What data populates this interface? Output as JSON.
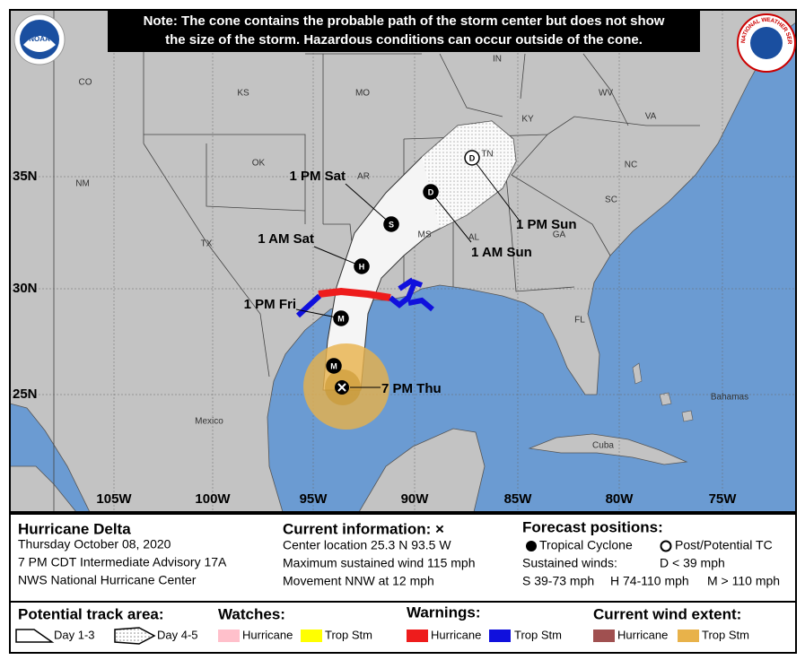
{
  "note_lines": [
    "Note: The cone contains the probable path of the storm center but does not show",
    "the size of the storm. Hazardous conditions can occur outside of the cone."
  ],
  "logos": {
    "noaa": "NOAA",
    "nws": "NATIONAL WEATHER SERVICE"
  },
  "region_labels": [
    "CO",
    "KS",
    "MO",
    "IN",
    "KY",
    "WV",
    "VA",
    "NC",
    "TN",
    "AR",
    "OK",
    "NM",
    "TX",
    "MS",
    "AL",
    "GA",
    "SC",
    "FL",
    "Mexico",
    "Cuba",
    "Bahamas"
  ],
  "latitude_labels": [
    "35N",
    "30N",
    "25N"
  ],
  "longitude_labels": [
    "105W",
    "100W",
    "95W",
    "90W",
    "85W",
    "80W",
    "75W"
  ],
  "track_labels": [
    "1 PM Sat",
    "1 AM Sat",
    "1 PM Fri",
    "7 PM Thu",
    "1 AM Sun",
    "1 PM Sun"
  ],
  "markers": [
    "M",
    "M",
    "H",
    "S",
    "D",
    "D"
  ],
  "info": {
    "storm": "Hurricane Delta",
    "date": "Thursday October 08, 2020",
    "advisory": "7 PM CDT Intermediate Advisory 17A",
    "office": "NWS National Hurricane Center"
  },
  "current": {
    "title": "Current information: ×",
    "lines": [
      "Center location 25.3 N 93.5 W",
      "Maximum sustained wind 115 mph",
      "Movement NNW at 12 mph"
    ]
  },
  "forecast": {
    "title": "Forecast positions:",
    "tropical": "Tropical Cyclone",
    "post": "Post/Potential TC",
    "winds": "Sustained winds:",
    "d": "D < 39 mph",
    "s": "S 39-73 mph",
    "h": "H 74-110 mph",
    "m": "M > 110 mph"
  },
  "legend": {
    "track_title": "Potential track area:",
    "day13": "Day 1-3",
    "day45": "Day 4-5",
    "watches_title": "Watches:",
    "watch_hurricane": "Hurricane",
    "watch_trop": "Trop Stm",
    "warnings_title": "Warnings:",
    "warn_hurricane": "Hurricane",
    "warn_trop": "Trop Stm",
    "wind_title": "Current wind extent:",
    "wind_hurricane": "Hurricane",
    "wind_trop": "Trop Stm"
  }
}
